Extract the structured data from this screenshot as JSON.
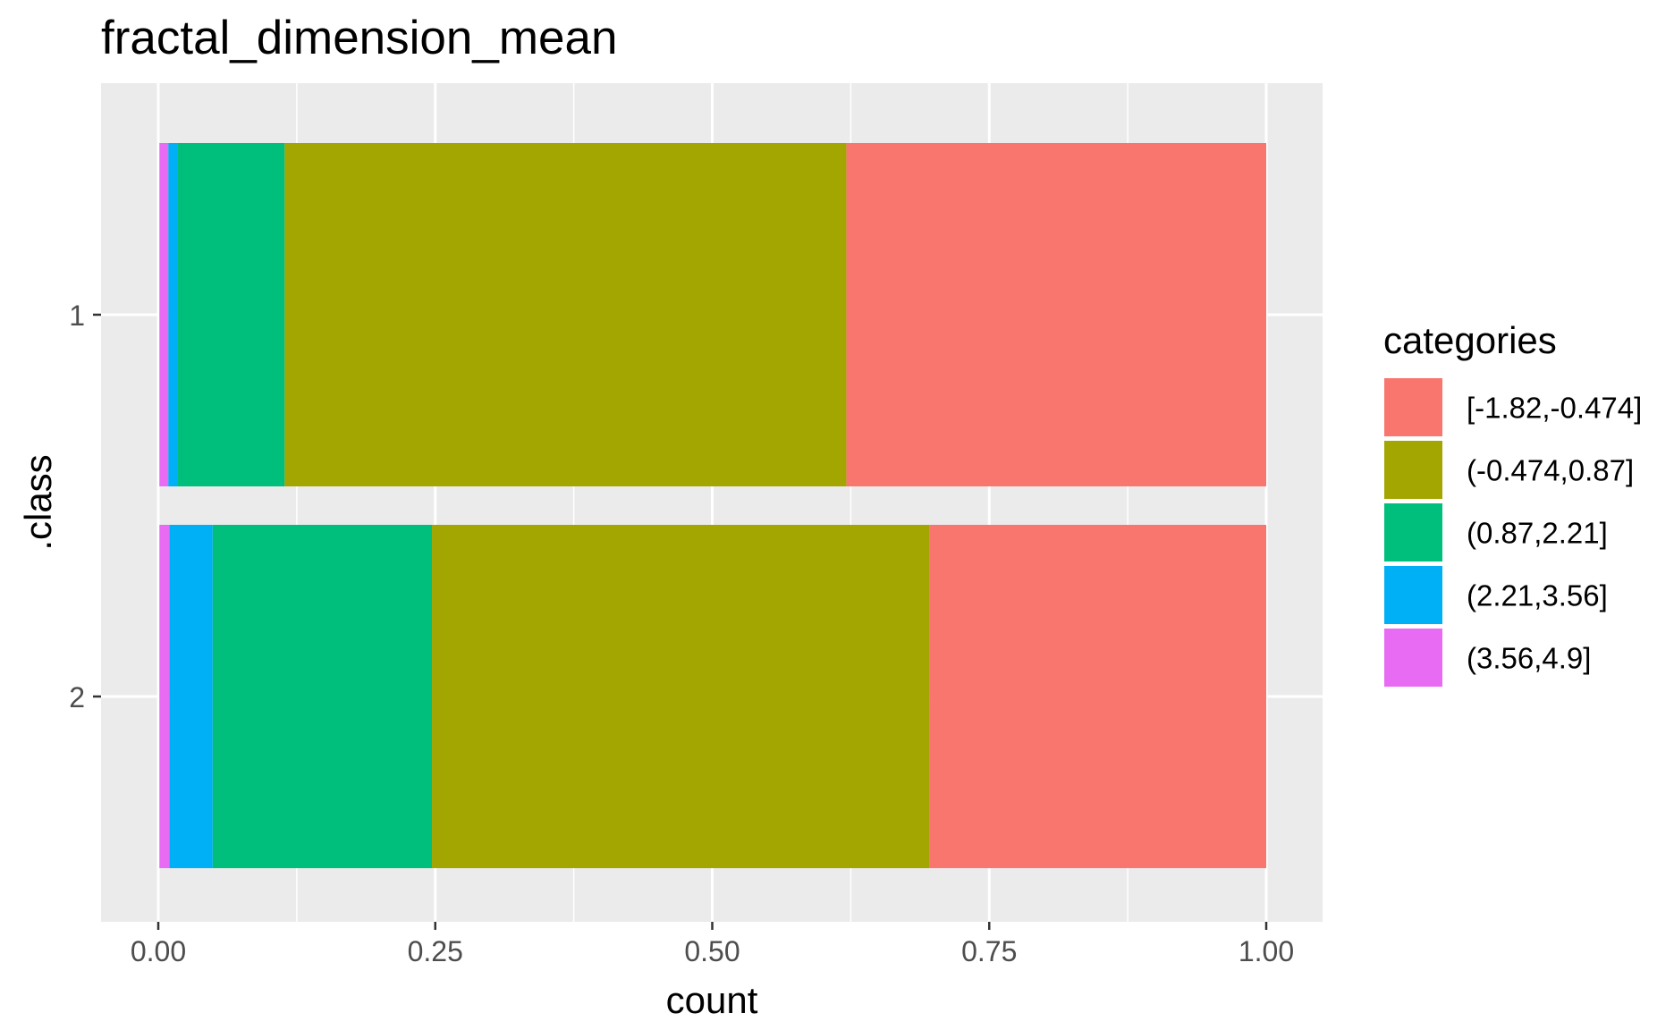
{
  "chart_data": {
    "type": "bar",
    "orientation": "horizontal",
    "stacked": true,
    "title": "fractal_dimension_mean",
    "xlabel": "count",
    "ylabel": ".class",
    "categories": [
      "1",
      "2"
    ],
    "xlim": [
      0,
      1
    ],
    "x_ticks": [
      "0.00",
      "0.25",
      "0.50",
      "0.75",
      "1.00"
    ],
    "x_tick_values": [
      0,
      0.25,
      0.5,
      0.75,
      1.0
    ],
    "grid": true,
    "legend": {
      "title": "categories",
      "position": "right"
    },
    "series": [
      {
        "name": "[-1.82,-0.474]",
        "color": "#F8766D",
        "values": [
          0.379,
          0.304
        ]
      },
      {
        "name": "(-0.474,0.87]",
        "color": "#A3A500",
        "values": [
          0.507,
          0.449
        ]
      },
      {
        "name": "(0.87,2.21]",
        "color": "#00BF7D",
        "values": [
          0.097,
          0.198
        ]
      },
      {
        "name": "(2.21,3.56]",
        "color": "#00B0F6",
        "values": [
          0.008,
          0.039
        ]
      },
      {
        "name": "(3.56,4.9]",
        "color": "#E76BF3",
        "values": [
          0.008,
          0.009
        ]
      }
    ]
  }
}
